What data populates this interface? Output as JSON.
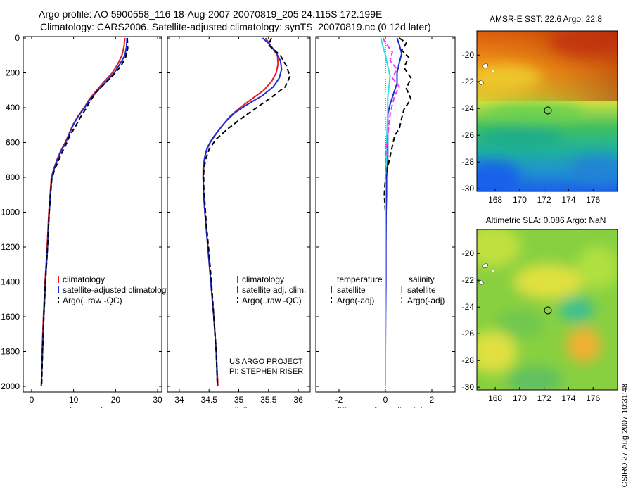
{
  "figure": {
    "title_line1": "Argo profile: AO 5900558_116 18-Aug-2007 20070819_205 24.115S 172.199E",
    "title_line2": "Climatology: CARS2006. Satellite-adjusted climatology: synTS_20070819.nc (0.12d later)",
    "credit": "CSIRO 27-Aug-2007 10:31:48",
    "project_line1": "US ARGO PROJECT",
    "project_line2": "PI: STEPHEN RISER"
  },
  "colors": {
    "climatology": "#e02020",
    "satellite": "#1a2fd6",
    "argo": "#000000",
    "salinity_satellite": "#30e0e0",
    "salinity_argo": "#ff30ff"
  },
  "chart_data": [
    {
      "type": "line",
      "id": "temperature",
      "xlabel": "temperature",
      "xlim": [
        -2,
        31
      ],
      "xticks": [
        0,
        10,
        20,
        30
      ],
      "ylim": [
        2000,
        0
      ],
      "yticks": [
        0,
        200,
        400,
        600,
        800,
        1000,
        1200,
        1400,
        1600,
        1800,
        2000
      ],
      "legend": [
        "climatology",
        "satellite-adjusted climatology",
        "Argo(..raw -QC)"
      ],
      "series": [
        {
          "name": "climatology",
          "color": "climatology",
          "dash": false,
          "points": [
            [
              22.2,
              0
            ],
            [
              22.0,
              50
            ],
            [
              21.5,
              100
            ],
            [
              20.5,
              150
            ],
            [
              19.2,
              200
            ],
            [
              17.3,
              250
            ],
            [
              15.5,
              300
            ],
            [
              13.8,
              350
            ],
            [
              12.5,
              400
            ],
            [
              11.0,
              450
            ],
            [
              9.8,
              500
            ],
            [
              8.9,
              550
            ],
            [
              8.0,
              600
            ],
            [
              6.9,
              650
            ],
            [
              6.0,
              700
            ],
            [
              5.3,
              750
            ],
            [
              4.7,
              800
            ],
            [
              4.4,
              900
            ],
            [
              4.1,
              1000
            ],
            [
              3.7,
              1200
            ],
            [
              3.2,
              1400
            ],
            [
              2.8,
              1600
            ],
            [
              2.5,
              1800
            ],
            [
              2.3,
              2000
            ]
          ]
        },
        {
          "name": "satellite-adjusted climatology",
          "color": "satellite",
          "dash": false,
          "points": [
            [
              22.7,
              0
            ],
            [
              22.6,
              50
            ],
            [
              22.2,
              100
            ],
            [
              21.0,
              150
            ],
            [
              19.7,
              200
            ],
            [
              17.8,
              250
            ],
            [
              15.8,
              300
            ],
            [
              14.0,
              350
            ],
            [
              12.6,
              400
            ],
            [
              11.1,
              450
            ],
            [
              9.9,
              500
            ],
            [
              9.0,
              550
            ],
            [
              8.1,
              600
            ],
            [
              7.0,
              650
            ],
            [
              6.1,
              700
            ],
            [
              5.4,
              750
            ],
            [
              4.8,
              800
            ],
            [
              4.5,
              900
            ],
            [
              4.2,
              1000
            ],
            [
              3.8,
              1200
            ],
            [
              3.3,
              1400
            ],
            [
              2.9,
              1600
            ],
            [
              2.6,
              1800
            ],
            [
              2.3,
              2000
            ]
          ]
        },
        {
          "name": "Argo(..raw -QC)",
          "color": "argo",
          "dash": true,
          "points": [
            [
              22.8,
              0
            ],
            [
              22.9,
              60
            ],
            [
              22.4,
              110
            ],
            [
              21.3,
              160
            ],
            [
              19.6,
              210
            ],
            [
              17.5,
              260
            ],
            [
              15.4,
              310
            ],
            [
              14.0,
              360
            ],
            [
              12.8,
              410
            ],
            [
              11.5,
              460
            ],
            [
              10.4,
              510
            ],
            [
              9.1,
              560
            ],
            [
              8.2,
              610
            ],
            [
              7.2,
              660
            ],
            [
              6.3,
              710
            ],
            [
              5.4,
              760
            ],
            [
              4.8,
              810
            ],
            [
              4.5,
              900
            ],
            [
              4.2,
              1000
            ],
            [
              3.8,
              1200
            ],
            [
              3.3,
              1400
            ],
            [
              2.9,
              1600
            ],
            [
              2.6,
              1800
            ],
            [
              2.4,
              1990
            ]
          ]
        }
      ]
    },
    {
      "type": "line",
      "id": "salinity",
      "xlabel": "salinity",
      "xlim": [
        33.8,
        36.2
      ],
      "xticks": [
        34,
        34.5,
        35,
        35.5,
        36
      ],
      "ylim": [
        2000,
        0
      ],
      "legend": [
        "climatology",
        "satellite adj. clim.",
        "Argo(..raw -QC)"
      ],
      "series": [
        {
          "name": "climatology",
          "color": "climatology",
          "dash": false,
          "points": [
            [
              35.45,
              0
            ],
            [
              35.55,
              50
            ],
            [
              35.65,
              100
            ],
            [
              35.66,
              150
            ],
            [
              35.63,
              200
            ],
            [
              35.55,
              250
            ],
            [
              35.42,
              300
            ],
            [
              35.22,
              350
            ],
            [
              35.02,
              400
            ],
            [
              34.85,
              450
            ],
            [
              34.73,
              500
            ],
            [
              34.62,
              550
            ],
            [
              34.52,
              600
            ],
            [
              34.45,
              650
            ],
            [
              34.42,
              700
            ],
            [
              34.4,
              750
            ],
            [
              34.4,
              800
            ],
            [
              34.41,
              900
            ],
            [
              34.43,
              1000
            ],
            [
              34.48,
              1200
            ],
            [
              34.53,
              1400
            ],
            [
              34.58,
              1600
            ],
            [
              34.62,
              1800
            ],
            [
              34.65,
              2000
            ]
          ]
        },
        {
          "name": "satellite adj. clim.",
          "color": "satellite",
          "dash": false,
          "points": [
            [
              35.4,
              0
            ],
            [
              35.5,
              30
            ],
            [
              35.62,
              80
            ],
            [
              35.7,
              130
            ],
            [
              35.72,
              180
            ],
            [
              35.68,
              230
            ],
            [
              35.58,
              280
            ],
            [
              35.4,
              330
            ],
            [
              35.15,
              380
            ],
            [
              34.93,
              430
            ],
            [
              34.78,
              480
            ],
            [
              34.66,
              530
            ],
            [
              34.55,
              580
            ],
            [
              34.47,
              630
            ],
            [
              34.43,
              680
            ],
            [
              34.41,
              740
            ],
            [
              34.4,
              800
            ],
            [
              34.41,
              900
            ],
            [
              34.43,
              1000
            ],
            [
              34.48,
              1200
            ],
            [
              34.53,
              1400
            ],
            [
              34.58,
              1600
            ],
            [
              34.62,
              1800
            ],
            [
              34.64,
              2000
            ]
          ]
        },
        {
          "name": "Argo(..raw -QC)",
          "color": "argo",
          "dash": true,
          "points": [
            [
              35.55,
              0
            ],
            [
              35.5,
              40
            ],
            [
              35.7,
              100
            ],
            [
              35.8,
              160
            ],
            [
              35.86,
              220
            ],
            [
              35.78,
              280
            ],
            [
              35.55,
              340
            ],
            [
              35.3,
              400
            ],
            [
              35.05,
              460
            ],
            [
              34.82,
              520
            ],
            [
              34.62,
              580
            ],
            [
              34.5,
              640
            ],
            [
              34.44,
              700
            ],
            [
              34.41,
              770
            ],
            [
              34.41,
              850
            ],
            [
              34.43,
              950
            ],
            [
              34.45,
              1050
            ],
            [
              34.49,
              1200
            ],
            [
              34.54,
              1400
            ],
            [
              34.58,
              1600
            ],
            [
              34.62,
              1800
            ],
            [
              34.64,
              1990
            ]
          ]
        }
      ]
    },
    {
      "type": "line",
      "id": "difference",
      "xlabel": "difference from climatology",
      "xlim": [
        -3,
        3
      ],
      "xticks": [
        -2,
        0,
        2
      ],
      "ylim": [
        2000,
        0
      ],
      "legend_left_title": "temperature",
      "legend_right_title": "salinity",
      "legend_left": [
        "satellite",
        "Argo(-adj)"
      ],
      "legend_right": [
        "satellite",
        "Argo(-adj)"
      ],
      "series": [
        {
          "name": "satellite",
          "group": "temperature",
          "color": "satellite",
          "dash": false,
          "points": [
            [
              0.5,
              0
            ],
            [
              0.6,
              40
            ],
            [
              0.7,
              90
            ],
            [
              0.6,
              140
            ],
            [
              0.5,
              200
            ],
            [
              0.5,
              260
            ],
            [
              0.35,
              320
            ],
            [
              0.2,
              380
            ],
            [
              0.1,
              440
            ],
            [
              0.1,
              500
            ],
            [
              0.1,
              560
            ],
            [
              0.1,
              620
            ],
            [
              0.1,
              700
            ],
            [
              0.05,
              800
            ],
            [
              0.05,
              900
            ],
            [
              0.03,
              1000
            ],
            [
              0.02,
              1200
            ],
            [
              0.02,
              1400
            ],
            [
              0.01,
              1600
            ],
            [
              0.0,
              1800
            ],
            [
              0.0,
              2000
            ]
          ]
        },
        {
          "name": "Argo(-adj)",
          "group": "temperature",
          "color": "argo",
          "dash": true,
          "points": [
            [
              0.6,
              0
            ],
            [
              0.9,
              30
            ],
            [
              0.7,
              70
            ],
            [
              1.0,
              110
            ],
            [
              0.8,
              170
            ],
            [
              1.1,
              230
            ],
            [
              0.9,
              290
            ],
            [
              1.1,
              350
            ],
            [
              0.8,
              410
            ],
            [
              0.7,
              460
            ],
            [
              0.6,
              520
            ],
            [
              0.4,
              560
            ],
            [
              0.3,
              620
            ],
            [
              0.2,
              680
            ],
            [
              0.1,
              740
            ],
            [
              0.0,
              800
            ],
            [
              -0.05,
              900
            ],
            [
              0.0,
              1000
            ],
            [
              0.0,
              1200
            ],
            [
              0.0,
              1400
            ],
            [
              0.0,
              1600
            ],
            [
              0.0,
              1800
            ],
            [
              0.0,
              2000
            ]
          ]
        },
        {
          "name": "satellite",
          "group": "salinity",
          "color": "salinity_satellite",
          "dash": false,
          "points": [
            [
              -0.2,
              0
            ],
            [
              -0.1,
              50
            ],
            [
              0.0,
              100
            ],
            [
              0.1,
              160
            ],
            [
              0.2,
              220
            ],
            [
              0.15,
              280
            ],
            [
              0.1,
              340
            ],
            [
              0.1,
              420
            ],
            [
              0.08,
              500
            ],
            [
              0.05,
              600
            ],
            [
              0.03,
              700
            ],
            [
              0.0,
              800
            ],
            [
              0.0,
              900
            ],
            [
              0.0,
              1000
            ],
            [
              0.0,
              1200
            ],
            [
              0.0,
              1400
            ],
            [
              0.0,
              1600
            ],
            [
              0.0,
              1800
            ],
            [
              0.0,
              2000
            ]
          ]
        },
        {
          "name": "Argo(-adj)",
          "group": "salinity",
          "color": "salinity_argo",
          "dash": true,
          "points": [
            [
              -0.1,
              0
            ],
            [
              0.0,
              30
            ],
            [
              0.3,
              80
            ],
            [
              0.2,
              130
            ],
            [
              0.5,
              180
            ],
            [
              0.3,
              230
            ],
            [
              0.6,
              280
            ],
            [
              0.4,
              330
            ],
            [
              0.3,
              380
            ],
            [
              0.2,
              440
            ],
            [
              0.15,
              500
            ],
            [
              0.1,
              560
            ],
            [
              0.05,
              620
            ],
            [
              0.0,
              680
            ],
            [
              0.0,
              760
            ],
            [
              0.0,
              840
            ]
          ]
        }
      ]
    }
  ],
  "maps": [
    {
      "id": "sst",
      "title": "AMSR-E SST: 22.6 Argo: 22.8",
      "xticks": [
        168,
        170,
        172,
        174,
        176
      ],
      "yticks": [
        -20,
        -22,
        -24,
        -26,
        -28,
        -30
      ],
      "lon_range": [
        166.5,
        178
      ],
      "lat_range": [
        -30.2,
        -18.2
      ],
      "marker": [
        172.2,
        -24.1
      ]
    },
    {
      "id": "sla",
      "title": "Altimetric SLA: 0.086 Argo: NaN",
      "xticks": [
        168,
        170,
        172,
        174,
        176
      ],
      "yticks": [
        -20,
        -22,
        -24,
        -26,
        -28,
        -30
      ],
      "lon_range": [
        166.5,
        178
      ],
      "lat_range": [
        -30.2,
        -18.2
      ],
      "marker": [
        172.2,
        -24.1
      ]
    }
  ]
}
